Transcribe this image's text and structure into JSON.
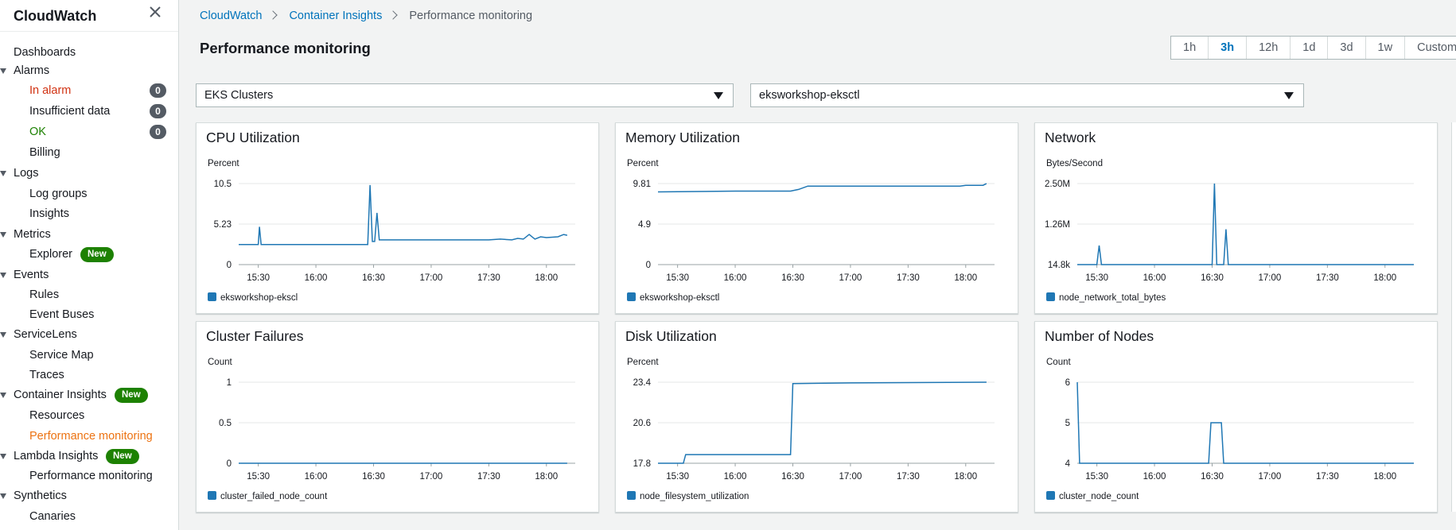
{
  "sidebar": {
    "title": "CloudWatch",
    "items": [
      {
        "label": "Dashboards",
        "level": 1,
        "arrow": false
      },
      {
        "label": "Alarms",
        "level": 1,
        "arrow": true
      },
      {
        "label": "In alarm",
        "level": 2,
        "color": "#d13212",
        "count": "0"
      },
      {
        "label": "Insufficient data",
        "level": 2,
        "count": "0"
      },
      {
        "label": "OK",
        "level": 2,
        "color": "#1d8102",
        "count": "0"
      },
      {
        "label": "Billing",
        "level": 2
      },
      {
        "label": "Logs",
        "level": 1,
        "arrow": true
      },
      {
        "label": "Log groups",
        "level": 2
      },
      {
        "label": "Insights",
        "level": 2
      },
      {
        "label": "Metrics",
        "level": 1,
        "arrow": true
      },
      {
        "label": "Explorer",
        "level": 2,
        "badge": "New"
      },
      {
        "label": "Events",
        "level": 1,
        "arrow": true
      },
      {
        "label": "Rules",
        "level": 2
      },
      {
        "label": "Event Buses",
        "level": 2
      },
      {
        "label": "ServiceLens",
        "level": 1,
        "arrow": true
      },
      {
        "label": "Service Map",
        "level": 2
      },
      {
        "label": "Traces",
        "level": 2
      },
      {
        "label": "Container Insights",
        "level": 1,
        "arrow": true,
        "badge": "New"
      },
      {
        "label": "Resources",
        "level": 2
      },
      {
        "label": "Performance monitoring",
        "level": 2,
        "color": "#ec7211",
        "active": true
      },
      {
        "label": "Lambda Insights",
        "level": 1,
        "arrow": true,
        "badge": "New"
      },
      {
        "label": "Performance monitoring",
        "level": 2
      },
      {
        "label": "Synthetics",
        "level": 1,
        "arrow": true
      },
      {
        "label": "Canaries",
        "level": 2
      }
    ]
  },
  "breadcrumb": [
    "CloudWatch",
    "Container Insights",
    "Performance monitoring"
  ],
  "page_title": "Performance monitoring",
  "time_range": {
    "options": [
      "1h",
      "3h",
      "12h",
      "1d",
      "3d",
      "1w",
      "Custom"
    ],
    "selected": "3h"
  },
  "selectors": {
    "resource_type": "EKS Clusters",
    "cluster": "eksworkshop-eksctl"
  },
  "colors": {
    "series": "#1f77b4",
    "link": "#0073bb",
    "active_nav": "#ec7211",
    "alarm": "#d13212",
    "ok": "#1d8102"
  },
  "chart_data": [
    {
      "type": "line",
      "title": "CPU Utilization",
      "ylabel": "Percent",
      "yticks": [
        "10.5",
        "5.23",
        "0"
      ],
      "ylim": [
        0,
        10.5
      ],
      "xticks": [
        "15:30",
        "16:00",
        "16:30",
        "17:00",
        "17:30",
        "18:00"
      ],
      "series": [
        {
          "name": "eksworkshop-ekscl",
          "x": [
            15.33,
            15.5,
            15.51,
            15.525,
            15.54,
            16.45,
            16.47,
            16.49,
            16.51,
            16.53,
            16.55,
            16.57,
            16.59,
            17.0,
            17.5,
            17.6,
            17.7,
            17.75,
            17.8,
            17.85,
            17.9,
            17.95,
            18.0,
            18.1,
            18.15,
            18.18
          ],
          "y": [
            2.6,
            2.6,
            4.9,
            2.6,
            2.6,
            2.6,
            10.3,
            3.0,
            3.0,
            6.7,
            3.2,
            3.2,
            3.2,
            3.2,
            3.2,
            3.3,
            3.2,
            3.4,
            3.3,
            3.9,
            3.3,
            3.6,
            3.5,
            3.6,
            3.9,
            3.8
          ]
        }
      ]
    },
    {
      "type": "line",
      "title": "Memory Utilization",
      "ylabel": "Percent",
      "yticks": [
        "9.81",
        "4.9",
        "0"
      ],
      "ylim": [
        0,
        9.81
      ],
      "xticks": [
        "15:30",
        "16:00",
        "16:30",
        "17:00",
        "17:30",
        "18:00"
      ],
      "series": [
        {
          "name": "eksworkshop-eksctl",
          "x": [
            15.33,
            16.0,
            16.48,
            16.55,
            16.63,
            17.0,
            17.5,
            17.95,
            18.0,
            18.15,
            18.18
          ],
          "y": [
            8.8,
            8.9,
            8.9,
            9.1,
            9.5,
            9.5,
            9.5,
            9.5,
            9.6,
            9.6,
            9.8
          ]
        }
      ]
    },
    {
      "type": "line",
      "title": "Network",
      "ylabel": "Bytes/Second",
      "yticks": [
        "2.50M",
        "1.26M",
        "14.8k"
      ],
      "ylim": [
        0.0148,
        2.5
      ],
      "xticks": [
        "15:30",
        "16:00",
        "16:30",
        "17:00",
        "17:30",
        "18:00"
      ],
      "series": [
        {
          "name": "node_network_total_bytes",
          "x": [
            15.33,
            15.5,
            15.52,
            15.54,
            16.5,
            16.52,
            16.54,
            16.6,
            16.62,
            16.64,
            18.25
          ],
          "y": [
            0.0148,
            0.0148,
            0.6,
            0.0148,
            0.0148,
            2.5,
            0.0148,
            0.0148,
            1.1,
            0.0148,
            0.0148
          ]
        }
      ]
    },
    {
      "type": "line",
      "title": "Cluster Failures",
      "ylabel": "Count",
      "yticks": [
        "1",
        "0.5",
        "0"
      ],
      "ylim": [
        0,
        1
      ],
      "xticks": [
        "15:30",
        "16:00",
        "16:30",
        "17:00",
        "17:30",
        "18:00"
      ],
      "series": [
        {
          "name": "cluster_failed_node_count",
          "x": [
            15.33,
            18.18
          ],
          "y": [
            0,
            0
          ]
        }
      ]
    },
    {
      "type": "line",
      "title": "Disk Utilization",
      "ylabel": "Percent",
      "yticks": [
        "23.4",
        "20.6",
        "17.8"
      ],
      "ylim": [
        17.8,
        23.4
      ],
      "xticks": [
        "15:30",
        "16:00",
        "16:30",
        "17:00",
        "17:30",
        "18:00"
      ],
      "series": [
        {
          "name": "node_filesystem_utilization",
          "x": [
            15.33,
            15.55,
            15.57,
            16.48,
            16.5,
            17.0,
            18.18
          ],
          "y": [
            17.8,
            17.8,
            18.4,
            18.4,
            23.3,
            23.35,
            23.4
          ]
        }
      ]
    },
    {
      "type": "line",
      "title": "Number of Nodes",
      "ylabel": "Count",
      "yticks": [
        "6",
        "5",
        "4"
      ],
      "ylim": [
        4,
        6
      ],
      "xticks": [
        "15:30",
        "16:00",
        "16:30",
        "17:00",
        "17:30",
        "18:00"
      ],
      "series": [
        {
          "name": "cluster_node_count",
          "x": [
            15.33,
            15.35,
            16.47,
            16.49,
            16.58,
            16.6,
            18.25
          ],
          "y": [
            6,
            4,
            4,
            5,
            5,
            4,
            4
          ]
        }
      ]
    }
  ]
}
